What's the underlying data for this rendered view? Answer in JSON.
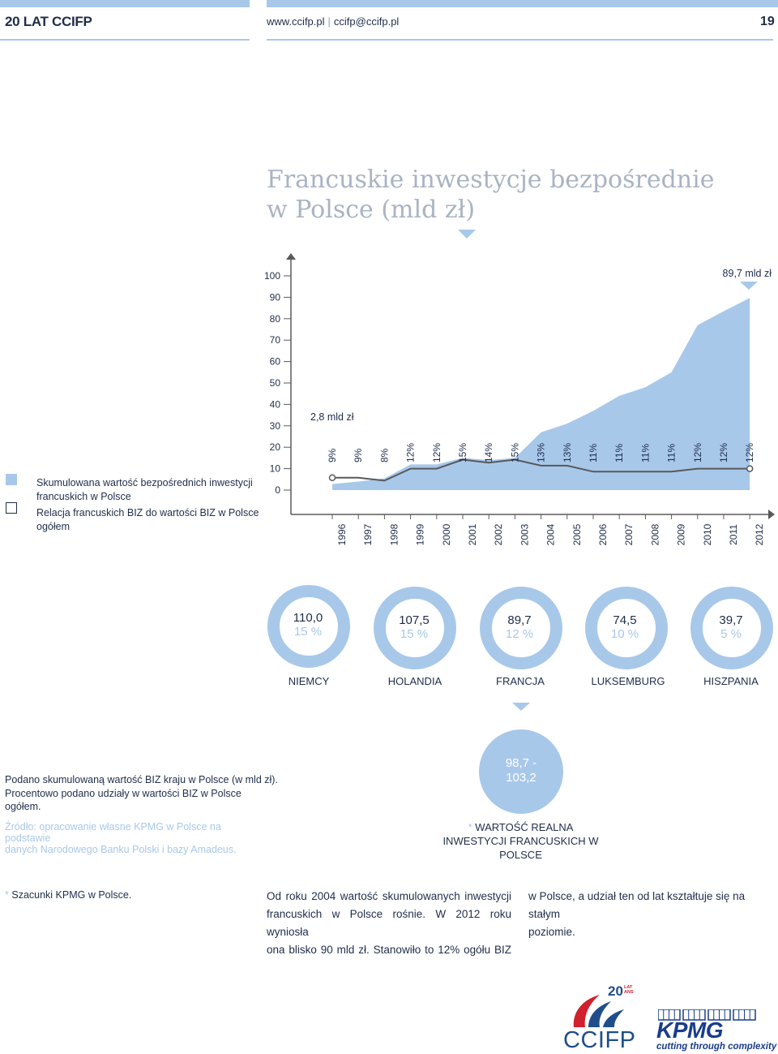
{
  "header": {
    "title": "20 LAT CCIFP",
    "website": "www.ccifp.pl",
    "email": "ccifp@ccifp.pl",
    "page_number": "19"
  },
  "chart_data": [
    {
      "type": "area",
      "title": "Francuskie inwestycje bezpośrednie\nw Polsce (mld zł)",
      "title_line1": "Francuskie inwestycje bezpośrednie",
      "title_line2": "w Polsce (mld zł)",
      "x": [
        "1996",
        "1997",
        "1998",
        "1999",
        "2000",
        "2001",
        "2002",
        "2003",
        "2004",
        "2005",
        "2006",
        "2007",
        "2008",
        "2009",
        "2010",
        "2011",
        "2012"
      ],
      "y_ticks": [
        0,
        10,
        20,
        30,
        40,
        50,
        60,
        70,
        80,
        90,
        100
      ],
      "ylim": [
        0,
        100
      ],
      "series": [
        {
          "kind": "area",
          "values": [
            2.8,
            4.0,
            5.5,
            12.0,
            12.0,
            15.0,
            14.0,
            15.0,
            27.0,
            31.0,
            37.0,
            44.0,
            48.0,
            55.0,
            77.0,
            83.5,
            89.7
          ],
          "color": "#a8c8ea"
        },
        {
          "kind": "share-line",
          "values": [
            9,
            9,
            8,
            12,
            12,
            15,
            14,
            15,
            13,
            13,
            11,
            11,
            11,
            11,
            12,
            12,
            12
          ],
          "labels": [
            "9%",
            "9%",
            "8%",
            "12%",
            "12%",
            "15%",
            "14%",
            "15%",
            "13%",
            "13%",
            "11%",
            "11%",
            "11%",
            "11%",
            "12%",
            "12%",
            "12%"
          ],
          "color": "#58595b"
        }
      ],
      "annotations": {
        "start": "2,8 mld zł",
        "end": "89,7 mld zł"
      },
      "legend": [
        {
          "label": "Skumulowana wartość bezpośrednich inwestycji francuskich w Polsce",
          "line1": "Skumulowana wartość bezpośrednich inwestycji",
          "line2": "francuskich w Polsce",
          "style": "filled",
          "color": "#a8c8ea"
        },
        {
          "label": "Relacja francuskich BIZ do wartości BIZ w Polsce ogółem",
          "line1": "Relacja francuskich BIZ do wartości BIZ w Polsce",
          "line2": "ogółem",
          "style": "outline",
          "color": "#1f2d4a"
        }
      ],
      "legend_position": "left"
    },
    {
      "type": "donut",
      "items": [
        {
          "country": "NIEMCY",
          "value": "110,0",
          "share": "15 %",
          "share_num": 15
        },
        {
          "country": "HOLANDIA",
          "value": "107,5",
          "share": "15 %",
          "share_num": 15
        },
        {
          "country": "FRANCJA",
          "value": "89,7",
          "share": "12 %",
          "share_num": 12
        },
        {
          "country": "LUKSEMBURG",
          "value": "74,5",
          "share": "10 %",
          "share_num": 10
        },
        {
          "country": "HISZPANIA",
          "value": "39,7",
          "share": "5 %",
          "share_num": 5
        }
      ],
      "real_value": {
        "value": "98,7 -\n103,2",
        "line1": "98,7 -",
        "line2": "103,2",
        "label_star": "*",
        "label_line1": "WARTOŚĆ REALNA",
        "label_line2": "INWESTYCJI FRANCUSKICH W POLSCE"
      }
    }
  ],
  "notes": {
    "line1": "Podano skumulowaną wartość BIZ kraju w Polsce (w mld zł).",
    "line2": "Procentowo podano udziały w wartości BIZ w Polsce",
    "line3": "ogółem.",
    "source_line1": "Źródło: opracowanie własne KPMG w Polsce na podstawie",
    "source_line2": "danych Narodowego Banku Polski i bazy Amadeus."
  },
  "footnote": {
    "star": "*",
    "text": "Szacunki KPMG w Polsce."
  },
  "body_text": {
    "col1_line1": "Od roku 2004 wartość skumulowanych inwestycji",
    "col1_line2": "francuskich w Polsce rośnie. W 2012 roku wyniosła",
    "col1_line3": "ona blisko 90 mld zł. Stanowiło to 12% ogółu BIZ",
    "col2_line1": "w Polsce, a udział ten od lat kształtuje się na stałym",
    "col2_line2": "poziomie."
  },
  "logos": {
    "ccifp_badge_number": "20",
    "ccifp_badge_text": "LAT ANS",
    "ccifp": "CCIFP",
    "kpmg": "KPMG",
    "kpmg_tagline": "cutting through complexity"
  },
  "colors": {
    "accent": "#a8c8ea",
    "navy": "#1f2d4a",
    "title_gray": "#a9b3c3",
    "line_gray": "#58595b",
    "ccifp_red": "#d0212d",
    "ccifp_blue": "#1f4e8a",
    "kpmg_blue": "#1a3d8a"
  }
}
